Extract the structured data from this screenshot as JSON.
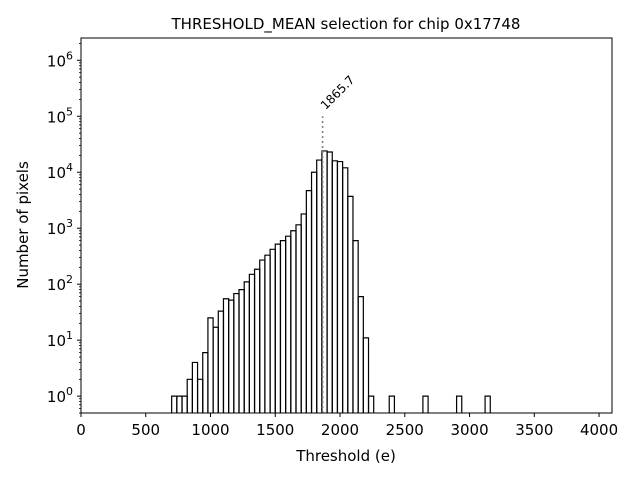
{
  "chart_data": {
    "type": "histogram",
    "title": "THRESHOLD_MEAN selection for chip 0x17748",
    "xlabel": "Threshold (e)",
    "ylabel": "Number of pixels",
    "xlim": [
      0,
      4100
    ],
    "ylim": [
      0.5,
      2500000
    ],
    "yscale": "log",
    "xticks": [
      0,
      500,
      1000,
      1500,
      2000,
      2500,
      3000,
      3500,
      4000
    ],
    "xtick_labels": [
      "0",
      "500",
      "1000",
      "1500",
      "2000",
      "2500",
      "3000",
      "3500",
      "4000"
    ],
    "yticks": [
      1,
      10,
      100,
      1000,
      10000,
      100000,
      1000000
    ],
    "ytick_labels": [
      {
        "base": "10",
        "exp": "0"
      },
      {
        "base": "10",
        "exp": "1"
      },
      {
        "base": "10",
        "exp": "2"
      },
      {
        "base": "10",
        "exp": "3"
      },
      {
        "base": "10",
        "exp": "4"
      },
      {
        "base": "10",
        "exp": "5"
      },
      {
        "base": "10",
        "exp": "6"
      }
    ],
    "bin_width": 40,
    "bins": [
      [
        700,
        1
      ],
      [
        740,
        1
      ],
      [
        780,
        1
      ],
      [
        820,
        2
      ],
      [
        860,
        4
      ],
      [
        900,
        2
      ],
      [
        940,
        6
      ],
      [
        980,
        25
      ],
      [
        1020,
        17
      ],
      [
        1060,
        33
      ],
      [
        1100,
        55
      ],
      [
        1140,
        52
      ],
      [
        1180,
        68
      ],
      [
        1220,
        80
      ],
      [
        1260,
        110
      ],
      [
        1300,
        150
      ],
      [
        1340,
        185
      ],
      [
        1380,
        270
      ],
      [
        1420,
        330
      ],
      [
        1460,
        420
      ],
      [
        1500,
        520
      ],
      [
        1540,
        600
      ],
      [
        1580,
        720
      ],
      [
        1620,
        900
      ],
      [
        1660,
        1150
      ],
      [
        1700,
        1800
      ],
      [
        1740,
        4700
      ],
      [
        1780,
        10000
      ],
      [
        1820,
        16500
      ],
      [
        1860,
        24000
      ],
      [
        1900,
        23000
      ],
      [
        1940,
        16000
      ],
      [
        1980,
        15500
      ],
      [
        2020,
        12000
      ],
      [
        2060,
        3700
      ],
      [
        2100,
        600
      ],
      [
        2140,
        60
      ],
      [
        2180,
        11
      ],
      [
        2220,
        1
      ],
      [
        2380,
        1
      ],
      [
        2640,
        1
      ],
      [
        2900,
        1
      ],
      [
        3120,
        1
      ]
    ],
    "marker": {
      "x": 1865.7,
      "y_top": 100000,
      "label": "1865.7",
      "color": "#808080"
    },
    "line_color": "#000000",
    "grid": false
  }
}
